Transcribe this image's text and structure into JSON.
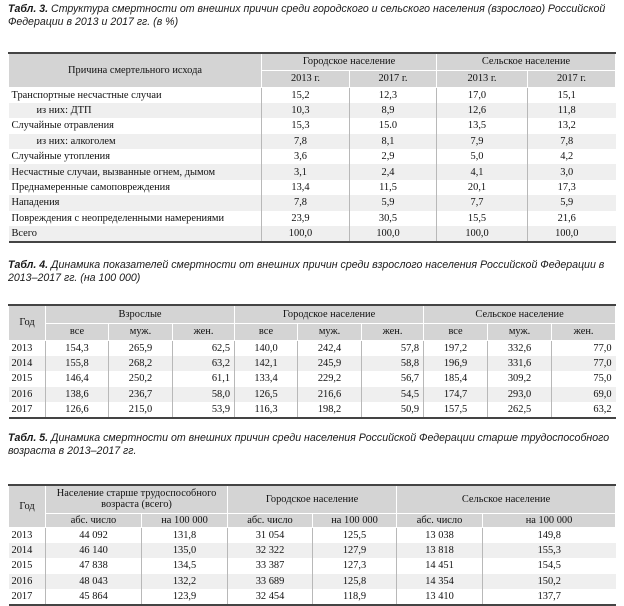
{
  "table3": {
    "caption_prefix": "Табл. 3.",
    "caption_text": "Структура смертности от внешних причин среди городского и сельского населения (взрослого) Российской Федерации в 2013 и 2017 гг. (в %)",
    "header": {
      "cause": "Причина смертельного исхода",
      "urban": "Городское население",
      "rural": "Сельское население",
      "y1": "2013 г.",
      "y2": "2017 г."
    },
    "rows": [
      {
        "label": "Транспортные несчастные случаи",
        "v": [
          "15,2",
          "12,3",
          "17,0",
          "15,1"
        ],
        "indent": false
      },
      {
        "label": "из них: ДТП",
        "v": [
          "10,3",
          "8,9",
          "12,6",
          "11,8"
        ],
        "indent": true
      },
      {
        "label": "Случайные отравления",
        "v": [
          "15,3",
          "15.0",
          "13,5",
          "13,2"
        ],
        "indent": false
      },
      {
        "label": "из них: алкоголем",
        "v": [
          "7,8",
          "8,1",
          "7,9",
          "7,8"
        ],
        "indent": true
      },
      {
        "label": "Случайные утопления",
        "v": [
          "3,6",
          "2,9",
          "5,0",
          "4,2"
        ],
        "indent": false
      },
      {
        "label": "Несчастные случаи, вызванные огнем, дымом",
        "v": [
          "3,1",
          "2,4",
          "4,1",
          "3,0"
        ],
        "indent": false
      },
      {
        "label": "Преднамеренные самоповреждения",
        "v": [
          "13,4",
          "11,5",
          "20,1",
          "17,3"
        ],
        "indent": false
      },
      {
        "label": "Нападения",
        "v": [
          "7,8",
          "5,9",
          "7,7",
          "5,9"
        ],
        "indent": false
      },
      {
        "label": "Повреждения с неопределенными намерениями",
        "v": [
          "23,9",
          "30,5",
          "15,5",
          "21,6"
        ],
        "indent": false
      },
      {
        "label": "Всего",
        "v": [
          "100,0",
          "100,0",
          "100,0",
          "100,0"
        ],
        "indent": false
      }
    ]
  },
  "table4": {
    "caption_prefix": "Табл. 4.",
    "caption_text": "Динамика показателей смертности от внешних причин среди взрослого населения Российской Федерации в 2013–2017 гг. (на 100 000)",
    "header": {
      "year": "Год",
      "adults": "Взрослые",
      "urban": "Городское население",
      "rural": "Сельское население",
      "all": "все",
      "male": "муж.",
      "female": "жен."
    },
    "rows": [
      {
        "year": "2013",
        "v": [
          "154,3",
          "265,9",
          "62,5",
          "140,0",
          "242,4",
          "57,8",
          "197,2",
          "332,6",
          "77,0"
        ]
      },
      {
        "year": "2014",
        "v": [
          "155,8",
          "268,2",
          "63,2",
          "142,1",
          "245,9",
          "58,8",
          "196,9",
          "331,6",
          "77,0"
        ]
      },
      {
        "year": "2015",
        "v": [
          "146,4",
          "250,2",
          "61,1",
          "133,4",
          "229,2",
          "56,7",
          "185,4",
          "309,2",
          "75,0"
        ]
      },
      {
        "year": "2016",
        "v": [
          "138,6",
          "236,7",
          "58,0",
          "126,5",
          "216,6",
          "54,5",
          "174,7",
          "293,0",
          "69,0"
        ]
      },
      {
        "year": "2017",
        "v": [
          "126,6",
          "215,0",
          "53,9",
          "116,3",
          "198,2",
          "50,9",
          "157,5",
          "262,5",
          "63,2"
        ]
      }
    ]
  },
  "table5": {
    "caption_prefix": "Табл. 5.",
    "caption_text": "Динамика смертности от внешних причин среди населения Российской Федерации старше трудоспособного возраста в 2013–2017 гг.",
    "header": {
      "year": "Год",
      "elderly": "Население старше трудоспособного возраста (всего)",
      "urban": "Городское население",
      "rural": "Сельское население",
      "abs": "абс. число",
      "per": "на 100 000"
    },
    "rows": [
      {
        "year": "2013",
        "v": [
          "44 092",
          "131,8",
          "31 054",
          "125,5",
          "13 038",
          "149,8"
        ]
      },
      {
        "year": "2014",
        "v": [
          "46 140",
          "135,0",
          "32 322",
          "127,9",
          "13 818",
          "155,3"
        ]
      },
      {
        "year": "2015",
        "v": [
          "47 838",
          "134,5",
          "33 387",
          "127,3",
          "14 451",
          "154,5"
        ]
      },
      {
        "year": "2016",
        "v": [
          "48 043",
          "132,2",
          "33 689",
          "125,8",
          "14 354",
          "150,2"
        ]
      },
      {
        "year": "2017",
        "v": [
          "45 864",
          "123,9",
          "32 454",
          "118,9",
          "13 410",
          "137,7"
        ]
      }
    ]
  }
}
